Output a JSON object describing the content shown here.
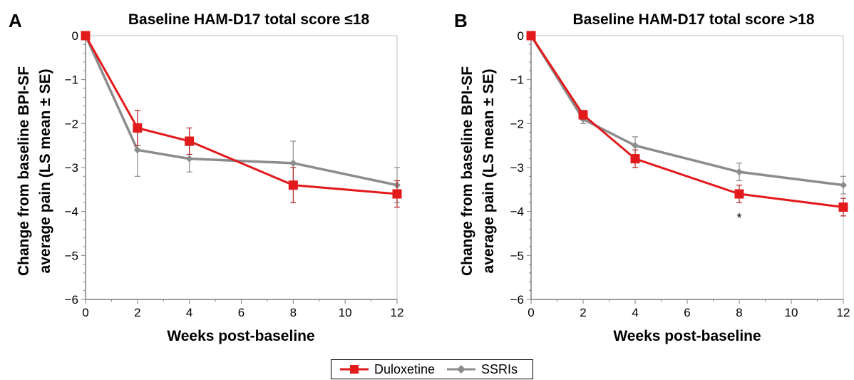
{
  "colors": {
    "duloxetine": "#e31a1c",
    "ssris": "#8c8c8c",
    "error_duloxetine": "#b22222",
    "error_ssris": "#8c8c8c",
    "axis": "#7f7f7f",
    "frame": "#bfbfbf"
  },
  "legend": {
    "items": [
      {
        "label": "Duloxetine",
        "marker": "square"
      },
      {
        "label": "SSRIs",
        "marker": "diamond"
      }
    ]
  },
  "chart_data": [
    {
      "type": "line",
      "panel_label": "A",
      "title": "Baseline HAM-D17 total score ≤18",
      "xlabel": "Weeks post-baseline",
      "ylabel_lines": [
        "Change from baseline BPI-SF",
        "average pain (LS mean ± SE)"
      ],
      "xlim": [
        0,
        12
      ],
      "ylim": [
        -6,
        0
      ],
      "xticks": [
        0,
        2,
        4,
        6,
        8,
        10,
        12
      ],
      "yticks": [
        0,
        -1,
        -2,
        -3,
        -4,
        -5,
        -6
      ],
      "ytick_labels": [
        "0",
        "−1",
        "−2",
        "−3",
        "−4",
        "−5",
        "−6"
      ],
      "grid": false,
      "series": [
        {
          "name": "Duloxetine",
          "x": [
            0,
            2,
            4,
            8,
            12
          ],
          "y": [
            0,
            -2.1,
            -2.4,
            -3.4,
            -3.6
          ],
          "se": [
            0,
            0.4,
            0.3,
            0.4,
            0.3
          ]
        },
        {
          "name": "SSRIs",
          "x": [
            0,
            2,
            4,
            8,
            12
          ],
          "y": [
            0,
            -2.6,
            -2.8,
            -2.9,
            -3.4
          ],
          "se": [
            0,
            0.6,
            0.3,
            0.5,
            0.4
          ]
        }
      ],
      "annotations": []
    },
    {
      "type": "line",
      "panel_label": "B",
      "title": "Baseline HAM-D17 total score >18",
      "xlabel": "Weeks post-baseline",
      "ylabel_lines": [
        "Change from baseline BPI-SF",
        "average pain (LS mean ± SE)"
      ],
      "xlim": [
        0,
        12
      ],
      "ylim": [
        -6,
        0
      ],
      "xticks": [
        0,
        2,
        4,
        6,
        8,
        10,
        12
      ],
      "yticks": [
        0,
        -1,
        -2,
        -3,
        -4,
        -5,
        -6
      ],
      "ytick_labels": [
        "0",
        "−1",
        "−2",
        "−3",
        "−4",
        "−5",
        "−6"
      ],
      "grid": false,
      "series": [
        {
          "name": "Duloxetine",
          "x": [
            0,
            2,
            4,
            8,
            12
          ],
          "y": [
            0,
            -1.8,
            -2.8,
            -3.6,
            -3.9
          ],
          "se": [
            0,
            0.1,
            0.2,
            0.2,
            0.2
          ]
        },
        {
          "name": "SSRIs",
          "x": [
            0,
            2,
            4,
            8,
            12
          ],
          "y": [
            0,
            -1.9,
            -2.5,
            -3.1,
            -3.4
          ],
          "se": [
            0,
            0.1,
            0.2,
            0.2,
            0.2
          ]
        }
      ],
      "annotations": [
        {
          "text": "*",
          "x": 8,
          "y": -4.05
        }
      ]
    }
  ]
}
